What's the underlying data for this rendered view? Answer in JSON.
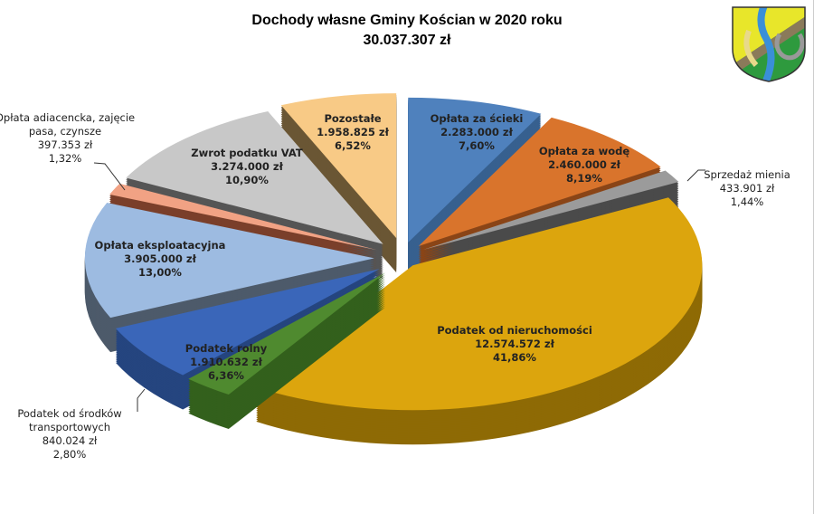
{
  "chart_data": {
    "type": "pie",
    "title": "Dochody własne Gminy Kościan w 2020 roku",
    "subtitle": "30.037.307  zł",
    "slices": [
      {
        "name": "Opłata za ścieki",
        "amount": "2.283.000  zł",
        "value": 7.6,
        "percent": "7,60%",
        "color": "#4f81bd",
        "side": "#37608f"
      },
      {
        "name": "Opłata za wodę",
        "amount": "2.460.000  zł",
        "value": 8.19,
        "percent": "8,19%",
        "color": "#d9742c",
        "side": "#8a4517"
      },
      {
        "name": "Sprzedaż mienia",
        "amount": "433.901  zł",
        "value": 1.44,
        "percent": "1,44%",
        "color": "#9b9b9b",
        "side": "#4a4a4a"
      },
      {
        "name": "Podatek od nieruchomości",
        "amount": "12.574.572  zł",
        "value": 41.86,
        "percent": "41,86%",
        "color": "#dca50d",
        "side": "#8e6a05"
      },
      {
        "name": "Podatek od środków transportowych",
        "amount": "840.024  zł",
        "value": 2.8,
        "percent": "2,80%",
        "color": "#4f8a2f",
        "side": "#33601c"
      },
      {
        "name": "Podatek rolny",
        "amount": "1.910.632  zł",
        "value": 6.36,
        "percent": "6,36%",
        "color": "#3a66b9",
        "side": "#25457f"
      },
      {
        "name": "Opłata eksploatacyjna",
        "amount": "3.905.000  zł",
        "value": 13.0,
        "percent": "13,00%",
        "color": "#9dbbe1",
        "side": "#4d5a6a"
      },
      {
        "name": "Opłata adiacencka, zajęcie pasa, czynsze",
        "amount": "397.353  zł",
        "value": 1.32,
        "percent": "1,32%",
        "color": "#f1a284",
        "side": "#7a3f2a"
      },
      {
        "name": "Zwrot podatku VAT",
        "amount": "3.274.000  zł",
        "value": 10.9,
        "percent": "10,90%",
        "color": "#c8c8c8",
        "side": "#555555"
      },
      {
        "name": "Pozostałe",
        "amount": "1.958.825  zł",
        "value": 6.52,
        "percent": "6,52%",
        "color": "#f8ca86",
        "side": "#6a5634"
      }
    ],
    "legend": "none",
    "labels": "data labels with name, amount and percent"
  }
}
